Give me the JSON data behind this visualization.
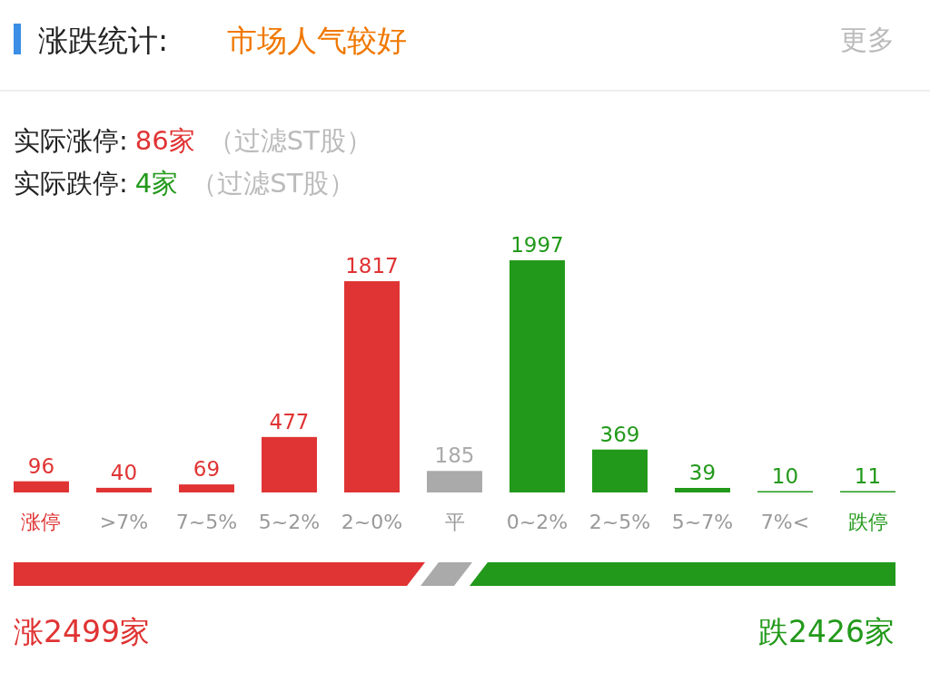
{
  "chart_data": {
    "type": "bar",
    "title": "涨跌统计:",
    "subtitle": "市场人气较好",
    "categories": [
      "涨停",
      ">7%",
      "7~5%",
      "5~2%",
      "2~0%",
      "平",
      "0~2%",
      "2~5%",
      "5~7%",
      "7%<",
      "跌停"
    ],
    "values": [
      96,
      40,
      69,
      477,
      1817,
      185,
      1997,
      369,
      39,
      10,
      11
    ],
    "colors": [
      "#e03333",
      "#e03333",
      "#e03333",
      "#e03333",
      "#e03333",
      "#aaaaaa",
      "#22991a",
      "#22991a",
      "#22991a",
      "#22991a",
      "#22991a"
    ],
    "data_labels": true,
    "annotations": [
      "更多",
      "实际涨停:",
      "86家",
      "（过滤ST股）",
      "实际跌停:",
      "4家",
      "（过滤ST股）",
      "涨2499家",
      "跌2426家"
    ]
  }
}
